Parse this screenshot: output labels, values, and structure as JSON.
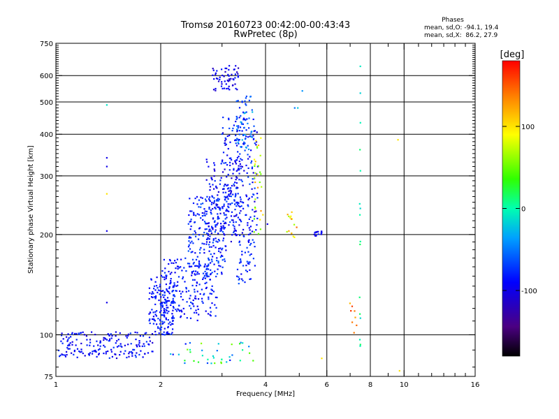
{
  "chart_data": {
    "type": "scatter",
    "title": "Tromsø 20160723 00:42:00-00:43:43",
    "subtitle": "RwPretec (8p)",
    "stats": {
      "heading": "Phases",
      "line1": "mean, sd,O: -94.1, 19.4",
      "line2": "mean, sd,X:  86.2, 27.9"
    },
    "xlabel": "Frequency [MHz]",
    "ylabel": "Stationary phase Virtual Height [km]",
    "x_scale": "log",
    "y_scale": "log",
    "xlim": [
      1,
      16
    ],
    "ylim": [
      75,
      750
    ],
    "x_ticks": [
      1,
      2,
      4,
      6,
      8,
      10,
      16
    ],
    "x_tick_labels": [
      "1",
      "2",
      "4",
      "6",
      "8",
      "10",
      "16"
    ],
    "x_minor_ticks": [
      3,
      5,
      7,
      9,
      11,
      12,
      13,
      14,
      15
    ],
    "x_gridlines": [
      2,
      4,
      6,
      8,
      10
    ],
    "y_ticks": [
      75,
      100,
      200,
      300,
      400,
      500,
      600,
      750
    ],
    "y_tick_labels": [
      "75",
      "100",
      "200",
      "300",
      "400",
      "500",
      "600",
      "750"
    ],
    "y_gridlines": [
      100,
      200,
      300,
      400,
      500,
      600
    ],
    "grid": true,
    "colorbar": {
      "label": "[deg]",
      "range": [
        -180,
        180
      ],
      "ticks": [
        -100,
        0,
        100
      ],
      "tick_labels": [
        "-100",
        "0",
        "100"
      ]
    },
    "clusters": [
      {
        "x": [
          1.0,
          1.9
        ],
        "y": [
          85,
          102
        ],
        "n": 180,
        "phase": [
          -110,
          -70
        ]
      },
      {
        "x": [
          1.85,
          2.2
        ],
        "y": [
          100,
          150
        ],
        "n": 140,
        "phase": [
          -100,
          -70
        ]
      },
      {
        "x": [
          2.0,
          2.9
        ],
        "y": [
          110,
          170
        ],
        "n": 210,
        "phase": [
          -100,
          -70
        ]
      },
      {
        "x": [
          2.4,
          3.1
        ],
        "y": [
          150,
          260
        ],
        "n": 210,
        "phase": [
          -100,
          -60
        ]
      },
      {
        "x": [
          2.7,
          3.4
        ],
        "y": [
          190,
          340
        ],
        "n": 170,
        "phase": [
          -110,
          -70
        ]
      },
      {
        "x": [
          3.0,
          3.8
        ],
        "y": [
          200,
          450
        ],
        "n": 190,
        "phase": [
          -110,
          -60
        ]
      },
      {
        "x": [
          3.3,
          3.7
        ],
        "y": [
          360,
          520
        ],
        "n": 60,
        "phase": [
          -90,
          -20
        ]
      },
      {
        "x": [
          3.3,
          3.8
        ],
        "y": [
          140,
          200
        ],
        "n": 50,
        "phase": [
          -100,
          -60
        ]
      },
      {
        "x": [
          2.8,
          3.35
        ],
        "y": [
          540,
          650
        ],
        "n": 60,
        "phase": [
          -120,
          -80
        ]
      },
      {
        "x": [
          2.1,
          3.7
        ],
        "y": [
          82,
          95
        ],
        "n": 40,
        "phase": [
          -90,
          60
        ]
      },
      {
        "x": [
          3.7,
          3.95
        ],
        "y": [
          200,
          390
        ],
        "n": 30,
        "phase": [
          40,
          130
        ]
      },
      {
        "x": [
          5.5,
          5.8
        ],
        "y": [
          198,
          205
        ],
        "n": 20,
        "phase": [
          -110,
          -80
        ]
      },
      {
        "x": [
          4.6,
          4.95
        ],
        "y": [
          185,
          240
        ],
        "n": 15,
        "phase": [
          60,
          160
        ]
      },
      {
        "x": [
          7.45,
          7.5
        ],
        "y": [
          90,
          660
        ],
        "n": 16,
        "phase": [
          -20,
          20
        ]
      },
      {
        "x": [
          6.9,
          7.3
        ],
        "y": [
          100,
          125
        ],
        "n": 8,
        "phase": [
          110,
          170
        ]
      }
    ],
    "scattered_points": [
      {
        "x": 1.4,
        "y": 490,
        "phase": -10
      },
      {
        "x": 1.4,
        "y": 340,
        "phase": -100
      },
      {
        "x": 1.4,
        "y": 320,
        "phase": -100
      },
      {
        "x": 1.4,
        "y": 265,
        "phase": 100
      },
      {
        "x": 1.4,
        "y": 205,
        "phase": -100
      },
      {
        "x": 1.4,
        "y": 125,
        "phase": -100
      },
      {
        "x": 4.85,
        "y": 480,
        "phase": -50
      },
      {
        "x": 4.95,
        "y": 480,
        "phase": -20
      },
      {
        "x": 5.1,
        "y": 540,
        "phase": -40
      },
      {
        "x": 4.05,
        "y": 215,
        "phase": -100
      },
      {
        "x": 9.6,
        "y": 385,
        "phase": 100
      },
      {
        "x": 9.7,
        "y": 78,
        "phase": 100
      },
      {
        "x": 5.8,
        "y": 85,
        "phase": 100
      }
    ],
    "seed": 20160723
  },
  "colors": {
    "axis": "#000000",
    "grid": "#000000",
    "background": "#ffffff"
  }
}
